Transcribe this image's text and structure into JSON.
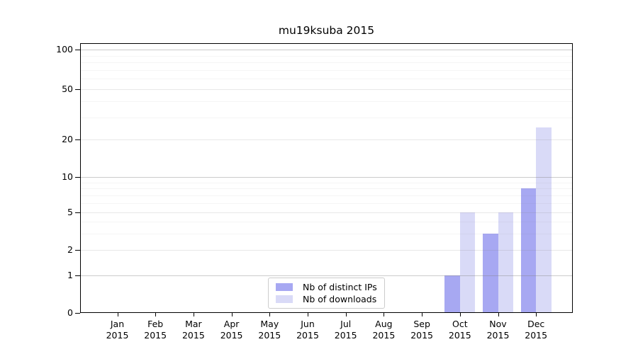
{
  "chart_data": {
    "type": "bar",
    "title": "mu19ksuba 2015",
    "categories": [
      "Jan 2015",
      "Feb 2015",
      "Mar 2015",
      "Apr 2015",
      "May 2015",
      "Jun 2015",
      "Jul 2015",
      "Aug 2015",
      "Sep 2015",
      "Oct 2015",
      "Nov 2015",
      "Dec 2015"
    ],
    "series": [
      {
        "name": "Nb of distinct IPs",
        "color": "#a7a8f2",
        "values": [
          0,
          0,
          0,
          0,
          0,
          0,
          0,
          0,
          0,
          1,
          3,
          8
        ]
      },
      {
        "name": "Nb of downloads",
        "color": "#d9daf7",
        "values": [
          0,
          0,
          0,
          0,
          0,
          0,
          0,
          0,
          0,
          5,
          5,
          25
        ]
      }
    ],
    "xlabel": "",
    "ylabel": "",
    "yscale": "symlog",
    "yticks": [
      0,
      1,
      2,
      5,
      10,
      20,
      50,
      100
    ],
    "ylim": [
      0,
      112
    ],
    "grid": "horizontal",
    "legend_position": "lower center"
  }
}
